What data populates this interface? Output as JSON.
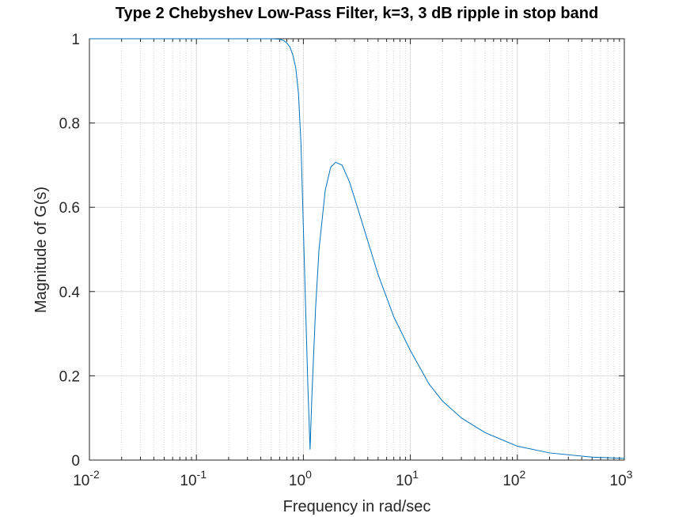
{
  "chart_data": {
    "type": "line",
    "title": "Type 2 Chebyshev Low-Pass Filter, k=3, 3 dB ripple in stop band",
    "xlabel": "Frequency in rad/sec",
    "ylabel": "Magnitude of G(s)",
    "xscale": "log",
    "xlim": [
      0.01,
      1000
    ],
    "ylim": [
      0,
      1
    ],
    "grid": true,
    "x_tick_labels": [
      {
        "base": "10",
        "exp": "-2"
      },
      {
        "base": "10",
        "exp": "-1"
      },
      {
        "base": "10",
        "exp": "0"
      },
      {
        "base": "10",
        "exp": "1"
      },
      {
        "base": "10",
        "exp": "2"
      },
      {
        "base": "10",
        "exp": "3"
      }
    ],
    "y_ticks": [
      0,
      0.2,
      0.4,
      0.6,
      0.8,
      1
    ],
    "y_tick_labels": [
      "0",
      "0.2",
      "0.4",
      "0.6",
      "0.8",
      "1"
    ],
    "series": [
      {
        "color": "#0072bd",
        "x": [
          0.01,
          0.1,
          0.3,
          0.5,
          0.6,
          0.65,
          0.7,
          0.75,
          0.8,
          0.85,
          0.9,
          0.95,
          1.0,
          1.05,
          1.1,
          1.155,
          1.2,
          1.3,
          1.4,
          1.6,
          1.8,
          2.0,
          2.3,
          2.7,
          3.2,
          4.0,
          5.0,
          7.0,
          10,
          15,
          20,
          30,
          50,
          100,
          200,
          500,
          1000
        ],
        "y": [
          1.0,
          1.0,
          1.0,
          1.0,
          0.999,
          0.996,
          0.99,
          0.98,
          0.96,
          0.93,
          0.87,
          0.75,
          0.55,
          0.36,
          0.18,
          0.025,
          0.15,
          0.36,
          0.5,
          0.64,
          0.695,
          0.707,
          0.7,
          0.66,
          0.6,
          0.52,
          0.44,
          0.34,
          0.26,
          0.18,
          0.14,
          0.1,
          0.065,
          0.033,
          0.017,
          0.007,
          0.004
        ]
      }
    ]
  }
}
